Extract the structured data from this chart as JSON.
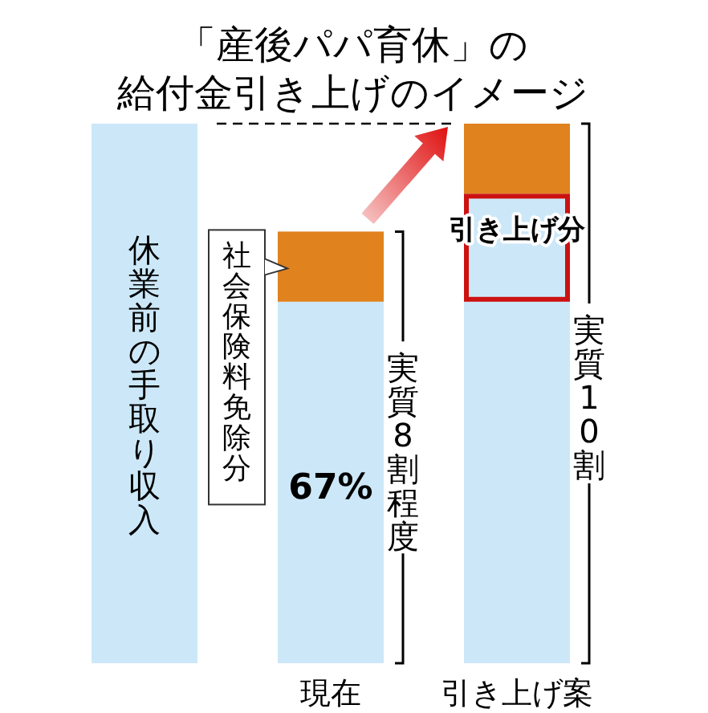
{
  "chart_data": {
    "type": "bar",
    "title": "「産後パパ育休」の",
    "subtitle": "給付金引き上げのイメージ",
    "stacked": true,
    "categories": [
      "休業前の手取り収入",
      "現在",
      "引き上げ案"
    ],
    "series": [
      {
        "color": "#cce8f8",
        "values": [
          100,
          67,
          67
        ],
        "value_labels": [
          null,
          "67%",
          null
        ]
      },
      {
        "name": "引き上げ分",
        "color": "#cce8f8",
        "values": [
          null,
          null,
          20
        ]
      },
      {
        "name": "社会保険料免除分",
        "color": "#e0821e",
        "values": [
          null,
          13,
          13
        ]
      }
    ],
    "ref_lines": [
      {
        "axis": "y",
        "value": 100,
        "line_style": "dashed",
        "color": "#000000"
      }
    ],
    "annotations": [
      "実質8割程度",
      "実質10割"
    ]
  }
}
